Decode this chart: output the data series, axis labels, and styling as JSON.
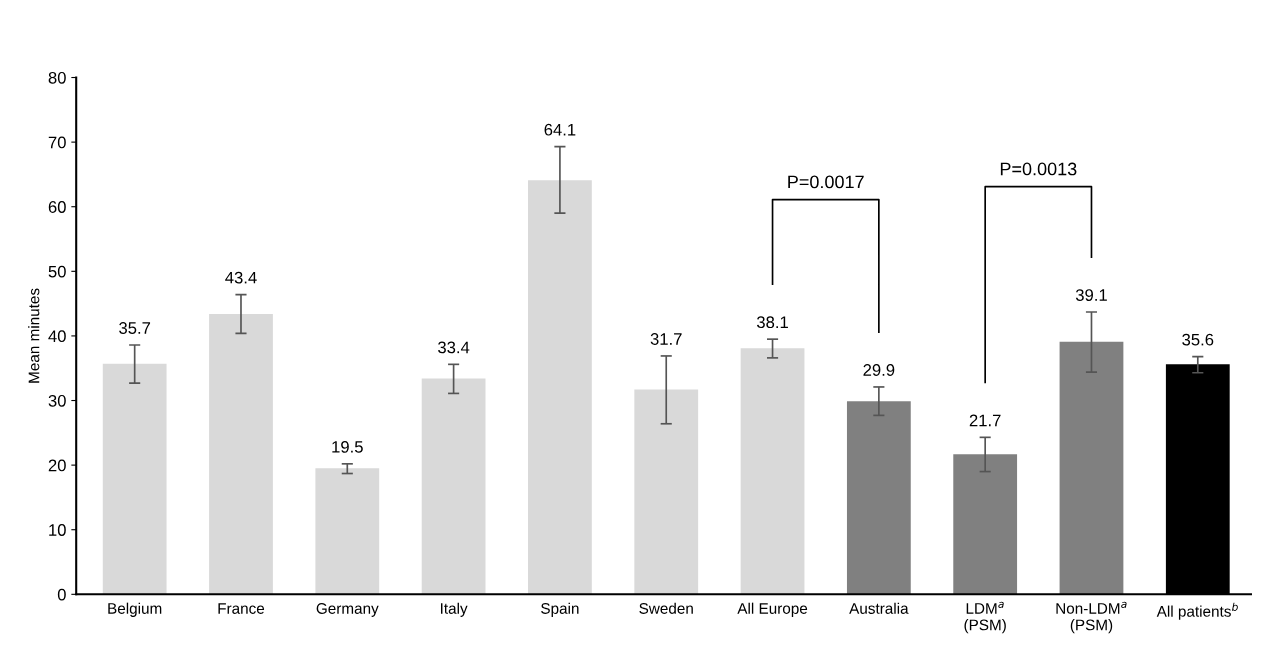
{
  "chart_data": {
    "type": "bar",
    "ylabel": "Mean minutes",
    "categories": [
      "Belgium",
      "France",
      "Germany",
      "Italy",
      "Spain",
      "Sweden",
      "All Europe",
      "Australia",
      "LDM$^{a}$\n(PSM)",
      "Non-LDM$^{a}$\n(PSM)",
      "All patients$^{b}$"
    ],
    "values": [
      35.7,
      43.4,
      19.5,
      33.4,
      64.1,
      31.7,
      38.1,
      29.9,
      21.7,
      39.1,
      35.6
    ],
    "colors": [
      "#d9d9d9",
      "#d9d9d9",
      "#d9d9d9",
      "#d9d9d9",
      "#d9d9d9",
      "#d9d9d9",
      "#d9d9d9",
      "#808080",
      "#808080",
      "#808080",
      "#000000"
    ],
    "errors": [
      [
        32.7,
        38.6
      ],
      [
        40.4,
        46.4
      ],
      [
        18.7,
        20.2
      ],
      [
        31.1,
        35.6
      ],
      [
        59.0,
        69.3
      ],
      [
        26.4,
        36.9
      ],
      [
        36.6,
        39.5
      ],
      [
        27.7,
        32.1
      ],
      [
        19.0,
        24.3
      ],
      [
        34.4,
        43.7
      ],
      [
        34.3,
        36.8
      ]
    ],
    "ylim": [
      0,
      80
    ],
    "yticks": [
      0,
      10,
      20,
      30,
      40,
      50,
      60,
      70,
      80
    ],
    "data_labels": true,
    "grid": false,
    "annotations": [
      "P=0.0017",
      "P=0.0013"
    ]
  }
}
